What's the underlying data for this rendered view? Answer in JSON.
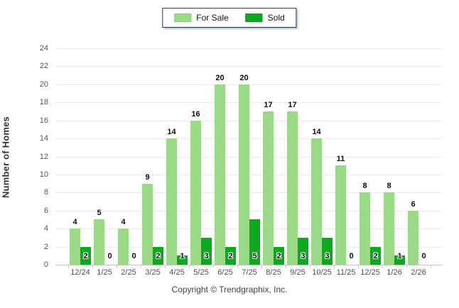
{
  "legend": {
    "items": [
      {
        "label": "For Sale",
        "color": "#9AD985",
        "border": "#8BCF77"
      },
      {
        "label": "Sold",
        "color": "#0CA81F",
        "border": "#0A9620"
      }
    ]
  },
  "chart_data": {
    "type": "bar",
    "categories": [
      "12/24",
      "1/25",
      "2/25",
      "3/25",
      "4/25",
      "5/25",
      "6/25",
      "7/25",
      "8/25",
      "9/25",
      "10/25",
      "11/25",
      "12/25",
      "1/26",
      "2/26"
    ],
    "series": [
      {
        "name": "For Sale",
        "color": "#9AD985",
        "values": [
          4,
          5,
          4,
          9,
          14,
          16,
          20,
          20,
          17,
          17,
          14,
          11,
          8,
          8,
          6
        ]
      },
      {
        "name": "Sold",
        "color": "#0CA81F",
        "values": [
          2,
          0,
          0,
          2,
          1,
          3,
          2,
          5,
          2,
          3,
          3,
          0,
          2,
          1,
          0
        ]
      }
    ],
    "title": "",
    "xlabel": "",
    "ylabel": "Number of Homes",
    "ylim": [
      0,
      24
    ],
    "ytick_step": 2,
    "grid": true,
    "legend_position": "top-center",
    "value_label_style": {
      "for_sale": "above-bar",
      "sold": "inside-bar-bottom"
    }
  },
  "footer": {
    "copyright": "Copyright © Trendgraphix, Inc."
  }
}
